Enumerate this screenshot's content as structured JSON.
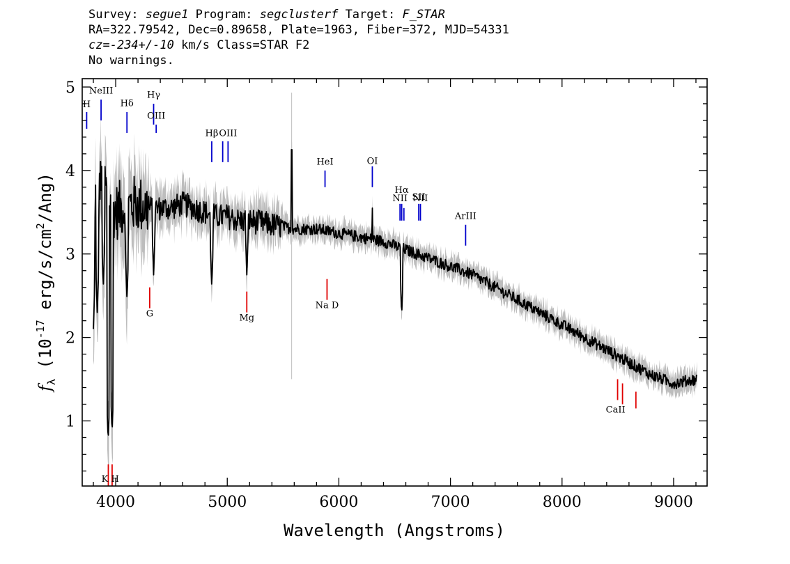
{
  "header": {
    "line1": {
      "survey_label": "Survey:",
      "survey": "segue1",
      "program_label": "Program:",
      "program": "segclusterf",
      "target_label": "Target:",
      "target": "F_STAR"
    },
    "line2": "RA=322.79542, Dec=0.89658, Plate=1963, Fiber=372, MJD=54331",
    "line3": {
      "cz_label": "cz=",
      "cz": "-234+/-10",
      "cz_unit": "km/s",
      "class": "Class=STAR F2"
    },
    "line4": "No warnings."
  },
  "chart_data": {
    "type": "line",
    "xlabel": "Wavelength (Angstroms)",
    "ylabel_prefix": "f",
    "ylabel_sub": "λ",
    "ylabel_mid": " (10",
    "ylabel_exp": "-17",
    "ylabel_mid2": " erg/s/cm",
    "ylabel_exp2": "2",
    "ylabel_end": "/Ang)",
    "xlim": [
      3700,
      9300
    ],
    "ylim": [
      0.22,
      5.1
    ],
    "xticks": [
      4000,
      5000,
      6000,
      7000,
      8000,
      9000
    ],
    "yticks": [
      1,
      2,
      3,
      4,
      5
    ],
    "spectrum_range": [
      3800,
      9210
    ],
    "colors": {
      "flux": "#000000",
      "error": "#bdbdbd",
      "emission": "#0000cc",
      "absorption": "#e00000"
    },
    "series": [
      {
        "name": "",
        "description": "flux (black) with noise envelope (grey)",
        "x": [
          3800,
          3850,
          3900,
          3950,
          4000,
          4050,
          4100,
          4150,
          4200,
          4300,
          4400,
          4500,
          4600,
          4700,
          4800,
          4900,
          5000,
          5100,
          5200,
          5400,
          5600,
          5800,
          6000,
          6200,
          6400,
          6600,
          6800,
          7000,
          7200,
          7400,
          7600,
          7800,
          8000,
          8200,
          8400,
          8600,
          8800,
          9000,
          9200
        ],
        "y": [
          3.6,
          3.8,
          3.85,
          3.6,
          3.5,
          3.55,
          3.55,
          3.6,
          3.6,
          3.55,
          3.55,
          3.55,
          3.6,
          3.55,
          3.5,
          3.45,
          3.45,
          3.4,
          3.4,
          3.35,
          3.3,
          3.3,
          3.25,
          3.2,
          3.15,
          3.05,
          2.95,
          2.85,
          2.75,
          2.6,
          2.45,
          2.3,
          2.15,
          2.0,
          1.85,
          1.7,
          1.55,
          1.45,
          1.5
        ]
      }
    ],
    "absorption_features": [
      {
        "x": 3800,
        "y": 2.1
      },
      {
        "x": 3835,
        "y": 2.3
      },
      {
        "x": 3889,
        "y": 2.6
      },
      {
        "x": 3933,
        "y": 0.75
      },
      {
        "x": 3968,
        "y": 0.85
      },
      {
        "x": 4101,
        "y": 2.45
      },
      {
        "x": 4340,
        "y": 2.75
      },
      {
        "x": 4861,
        "y": 2.6
      },
      {
        "x": 5175,
        "y": 2.75
      },
      {
        "x": 6563,
        "y": 2.25
      }
    ],
    "spikes": [
      {
        "x": 5577,
        "y": 4.25
      },
      {
        "x": 6300,
        "y": 3.55
      }
    ],
    "emission_lines": [
      {
        "label": "H",
        "x": 3740,
        "y1": 4.5,
        "y2": 4.7,
        "ly": 4.76
      },
      {
        "label": "NeIII",
        "x": 3869,
        "y1": 4.6,
        "y2": 4.85,
        "ly": 4.92
      },
      {
        "label": "Hδ",
        "x": 4101,
        "y1": 4.45,
        "y2": 4.7,
        "ly": 4.77
      },
      {
        "label": "Hγ",
        "x": 4340,
        "y1": 4.55,
        "y2": 4.8,
        "ly": 4.87
      },
      {
        "label": "OIII",
        "x": 4363,
        "y1": 4.45,
        "y2": 4.55,
        "ly": 4.62
      },
      {
        "label": "Hβ",
        "x": 4861,
        "y1": 4.1,
        "y2": 4.35,
        "ly": 4.41
      },
      {
        "label": "OIII",
        "x": 4959,
        "y1": 4.1,
        "y2": 4.35,
        "ly": -1
      },
      {
        "label": "OIII",
        "x": 5007,
        "y1": 4.1,
        "y2": 4.35,
        "ly": 4.41
      },
      {
        "label": "HeI",
        "x": 5876,
        "y1": 3.8,
        "y2": 4.0,
        "ly": 4.07
      },
      {
        "label": "OI",
        "x": 6300,
        "y1": 3.8,
        "y2": 4.05,
        "ly": 4.08
      },
      {
        "label": "NII",
        "x": 6548,
        "y1": 3.4,
        "y2": 3.6,
        "ly": 3.63
      },
      {
        "label": "Hα",
        "x": 6563,
        "y1": 3.4,
        "y2": 3.6,
        "ly": 3.73
      },
      {
        "label": "NII",
        "x": 6583,
        "y1": 3.4,
        "y2": 3.55,
        "ly": -1
      },
      {
        "label": "SII",
        "x": 6716,
        "y1": 3.4,
        "y2": 3.6,
        "ly": 3.65
      },
      {
        "label": "NII",
        "x": 6731,
        "y1": 3.4,
        "y2": 3.6,
        "ly": 3.63
      },
      {
        "label": "ArIII",
        "x": 7136,
        "y1": 3.1,
        "y2": 3.35,
        "ly": 3.42
      }
    ],
    "absorption_lines": [
      {
        "label": "K",
        "x": 3934,
        "y1": 0.22,
        "y2": 0.48
      },
      {
        "label": "H",
        "x": 3968,
        "y1": 0.22,
        "y2": 0.48
      },
      {
        "label": "G",
        "x": 4305,
        "y1": 2.35,
        "y2": 2.6,
        "ly": 2.25
      },
      {
        "label": "Mg",
        "x": 5175,
        "y1": 2.3,
        "y2": 2.55,
        "ly": 2.2
      },
      {
        "label": "Na D",
        "x": 5894,
        "y1": 2.45,
        "y2": 2.7,
        "ly": 2.35
      },
      {
        "label": "CaII",
        "x": 8498,
        "y1": 1.25,
        "y2": 1.5
      },
      {
        "label": "CaII",
        "x": 8542,
        "y1": 1.2,
        "y2": 1.45
      },
      {
        "label": "CaII",
        "x": 8662,
        "y1": 1.15,
        "y2": 1.35
      }
    ]
  }
}
